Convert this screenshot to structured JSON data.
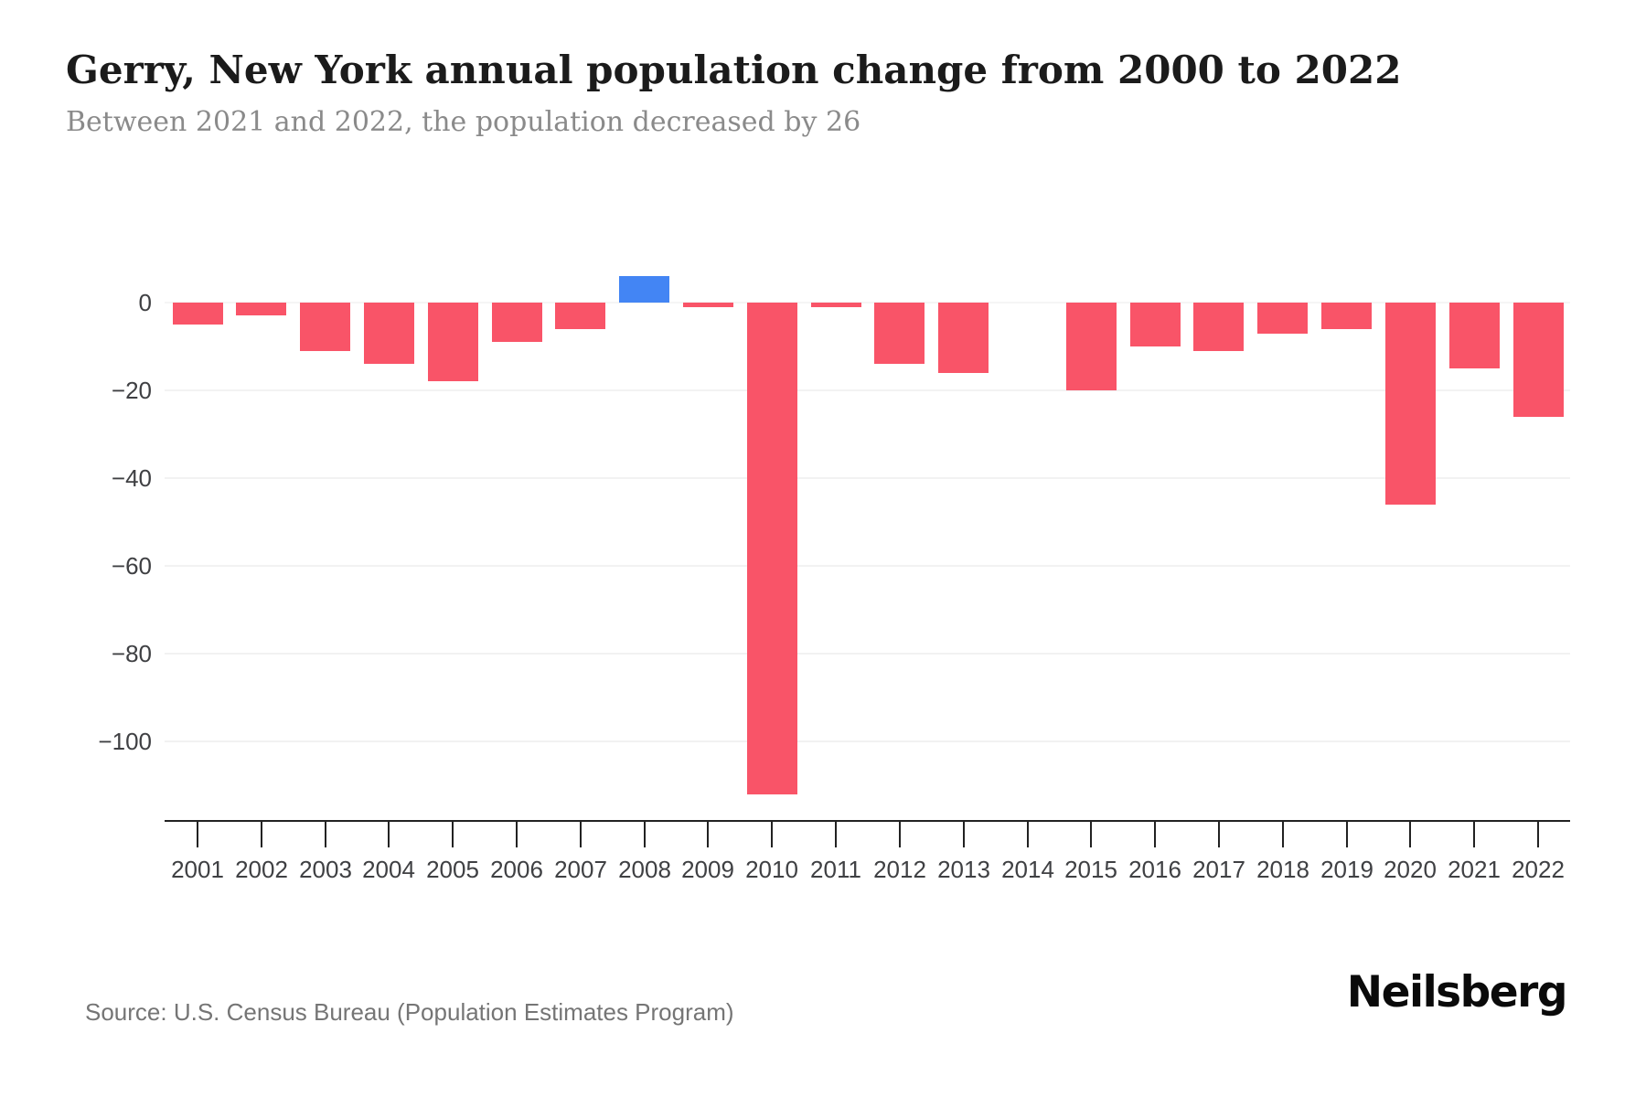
{
  "title": "Gerry, New York annual population change from 2000 to 2022",
  "subtitle": "Between 2021 and 2022, the population decreased by 26",
  "source": "Source: U.S. Census Bureau (Population Estimates Program)",
  "brand": "Neilsberg",
  "colors": {
    "negative_bar": "#f95468",
    "positive_bar": "#4385f4",
    "gridline": "#f2f2f2",
    "axis": "#222222",
    "tick_label": "#3f4043",
    "title_text": "#1b1b1b",
    "subtitle_text": "#8a8a8a",
    "source_text": "#757575"
  },
  "chart_data": {
    "type": "bar",
    "title": "Gerry, New York annual population change from 2000 to 2022",
    "subtitle": "Between 2021 and 2022, the population decreased by 26",
    "categories": [
      "2001",
      "2002",
      "2003",
      "2004",
      "2005",
      "2006",
      "2007",
      "2008",
      "2009",
      "2010",
      "2011",
      "2012",
      "2013",
      "2014",
      "2015",
      "2016",
      "2017",
      "2018",
      "2019",
      "2020",
      "2021",
      "2022"
    ],
    "values": [
      -5,
      -3,
      -11,
      -14,
      -18,
      -9,
      -6,
      6,
      -1,
      -112,
      -1,
      -14,
      -16,
      0,
      -20,
      -10,
      -11,
      -7,
      -6,
      -46,
      -15,
      -26
    ],
    "xlabel": "",
    "ylabel": "",
    "yticks": [
      0,
      -20,
      -40,
      -60,
      -80,
      -100
    ],
    "ytick_labels": [
      "0",
      "−20",
      "−40",
      "−60",
      "−80",
      "−100"
    ],
    "ylim": [
      -118,
      10
    ],
    "grid": "horizontal",
    "legend": "none",
    "positive_color": "#4385f4",
    "negative_color": "#f95468"
  }
}
